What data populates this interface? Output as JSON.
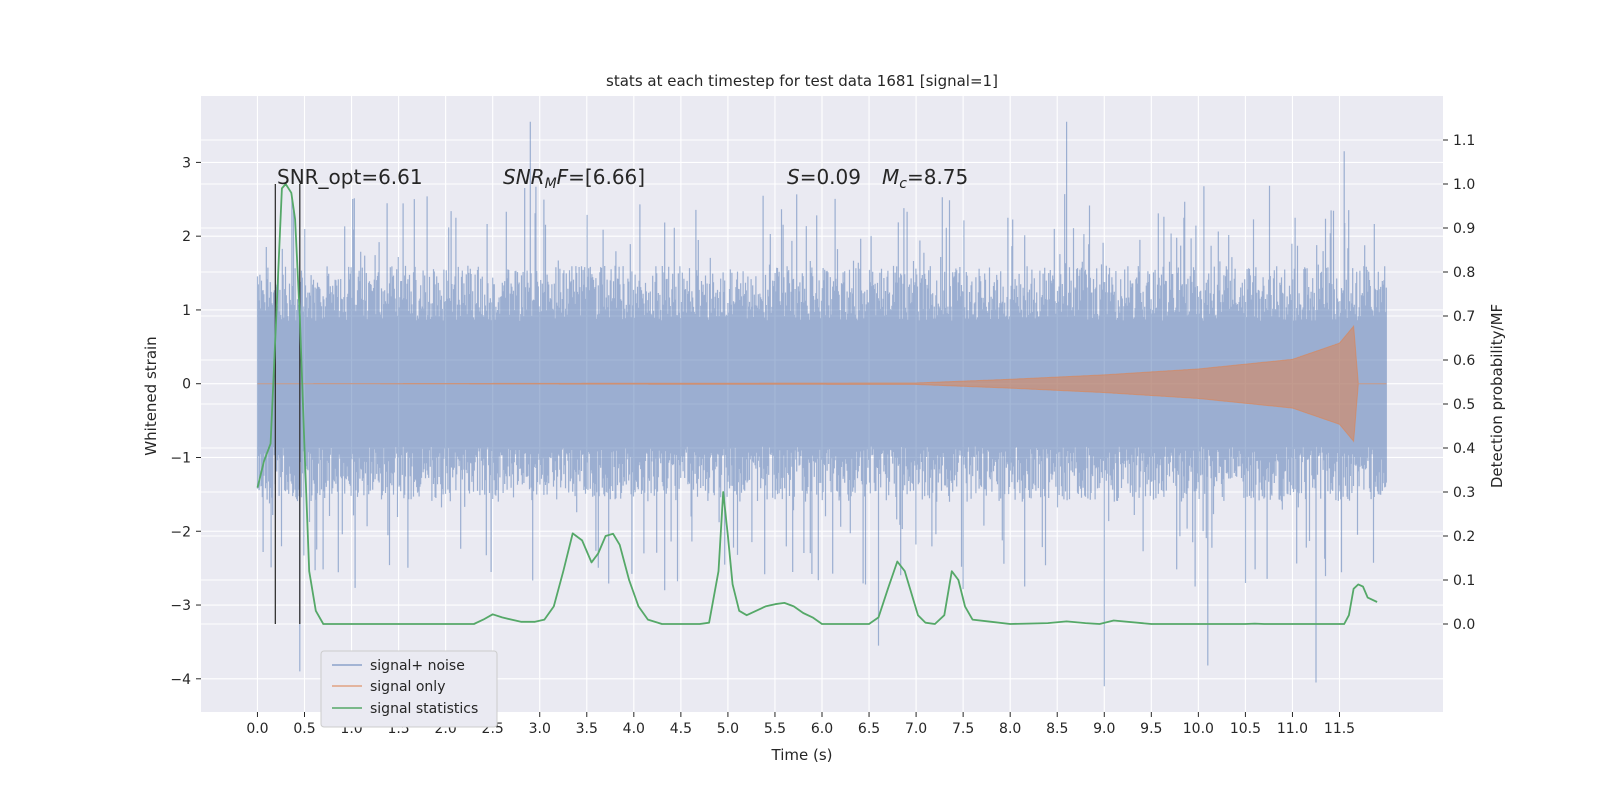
{
  "chart_data": {
    "type": "line",
    "title": "stats at each timestep for test data 1681 [signal=1]",
    "xlabel": "Time (s)",
    "ylabel": "Whitened strain",
    "ylabel_right": "Detection probability/MF",
    "xlim": [
      -0.6,
      12.6
    ],
    "ylim": [
      -4.45,
      3.9
    ],
    "ylim_right": [
      -0.2,
      1.2
    ],
    "x_ticks": [
      "0.0",
      "0.5",
      "1.0",
      "1.5",
      "2.0",
      "2.5",
      "3.0",
      "3.5",
      "4.0",
      "4.5",
      "5.0",
      "5.5",
      "6.0",
      "6.5",
      "7.0",
      "7.5",
      "8.0",
      "8.5",
      "9.0",
      "9.5",
      "10.0",
      "10.5",
      "11.0",
      "11.5"
    ],
    "y_ticks": [
      "3",
      "2",
      "1",
      "0",
      "−1",
      "−2",
      "−3",
      "−4"
    ],
    "y_ticks_right": [
      "1.1",
      "1.0",
      "0.9",
      "0.8",
      "0.7",
      "0.6",
      "0.5",
      "0.4",
      "0.3",
      "0.2",
      "0.1",
      "0.0"
    ],
    "grid": true,
    "legend_position": "lower-left",
    "annotations": {
      "snr_opt": "SNR_opt=6.61",
      "snr_mf_italic": "SNR",
      "snr_mf_sub": "M",
      "snr_mf_rest_italic": "F",
      "snr_mf_value": "=[6.66]",
      "s_italic": "S",
      "s_value": "=0.09",
      "mc_italic": "M",
      "mc_sub": "c",
      "mc_value": "=8.75"
    },
    "vertical_markers_x": [
      0.19,
      0.45
    ],
    "series": [
      {
        "name": "signal+ noise",
        "color": "#4c72b0",
        "kind": "noise",
        "x_range": [
          0.0,
          12.0
        ],
        "envelope": {
          "typical_upper": 1.6,
          "typical_lower": -1.6,
          "peak_upper": 3.55,
          "peak_lower": -4.1
        },
        "spikes": [
          [
            0.45,
            -3.9
          ],
          [
            2.9,
            3.55
          ],
          [
            6.6,
            -3.55
          ],
          [
            9.0,
            -4.1
          ],
          [
            10.1,
            -3.82
          ],
          [
            11.25,
            -4.05
          ],
          [
            8.6,
            3.55
          ],
          [
            11.55,
            3.15
          ]
        ]
      },
      {
        "name": "signal only",
        "color": "#dd8452",
        "kind": "chirp",
        "x_range": [
          0.0,
          12.0
        ],
        "envelope_points": [
          [
            0.0,
            0.0
          ],
          [
            7.0,
            0.01
          ],
          [
            8.0,
            0.06
          ],
          [
            9.0,
            0.12
          ],
          [
            10.0,
            0.2
          ],
          [
            11.0,
            0.33
          ],
          [
            11.5,
            0.55
          ],
          [
            11.65,
            0.78
          ],
          [
            11.7,
            0.0
          ],
          [
            12.0,
            0.0
          ]
        ]
      },
      {
        "name": "signal statistics",
        "color": "#55a868",
        "kind": "line",
        "x": [
          0.0,
          0.07,
          0.14,
          0.2,
          0.26,
          0.3,
          0.36,
          0.4,
          0.45,
          0.5,
          0.55,
          0.62,
          0.7,
          0.9,
          1.2,
          1.6,
          2.0,
          2.3,
          2.4,
          2.5,
          2.6,
          2.8,
          2.95,
          3.05,
          3.15,
          3.25,
          3.35,
          3.45,
          3.55,
          3.62,
          3.7,
          3.78,
          3.85,
          3.95,
          4.05,
          4.15,
          4.3,
          4.5,
          4.7,
          4.8,
          4.9,
          4.95,
          5.0,
          5.05,
          5.12,
          5.2,
          5.3,
          5.4,
          5.5,
          5.6,
          5.7,
          5.8,
          5.9,
          6.0,
          6.3,
          6.5,
          6.6,
          6.7,
          6.8,
          6.88,
          6.95,
          7.02,
          7.1,
          7.2,
          7.3,
          7.38,
          7.45,
          7.52,
          7.6,
          7.8,
          8.0,
          8.4,
          8.6,
          8.8,
          8.95,
          9.1,
          9.5,
          10.0,
          10.5,
          10.6,
          10.7,
          11.0,
          11.3,
          11.55,
          11.6,
          11.65,
          11.7,
          11.75,
          11.8,
          11.9
        ],
        "y": [
          0.31,
          0.37,
          0.41,
          0.7,
          0.99,
          1.0,
          0.98,
          0.92,
          0.7,
          0.4,
          0.12,
          0.03,
          0.0,
          0.0,
          0.0,
          0.0,
          0.0,
          0.0,
          0.01,
          0.022,
          0.015,
          0.005,
          0.005,
          0.01,
          0.04,
          0.12,
          0.206,
          0.19,
          0.14,
          0.16,
          0.2,
          0.205,
          0.18,
          0.1,
          0.04,
          0.01,
          0.0,
          0.0,
          0.0,
          0.003,
          0.12,
          0.3,
          0.2,
          0.09,
          0.03,
          0.02,
          0.03,
          0.04,
          0.045,
          0.048,
          0.04,
          0.025,
          0.015,
          0.0,
          0.0,
          0.0,
          0.015,
          0.08,
          0.142,
          0.12,
          0.07,
          0.02,
          0.003,
          0.0,
          0.02,
          0.12,
          0.1,
          0.04,
          0.01,
          0.005,
          0.0,
          0.002,
          0.006,
          0.002,
          0.0,
          0.008,
          0.0,
          0.0,
          0.0,
          0.001,
          0.0,
          0.0,
          0.0,
          0.0,
          0.02,
          0.08,
          0.09,
          0.085,
          0.06,
          0.05
        ]
      }
    ]
  }
}
